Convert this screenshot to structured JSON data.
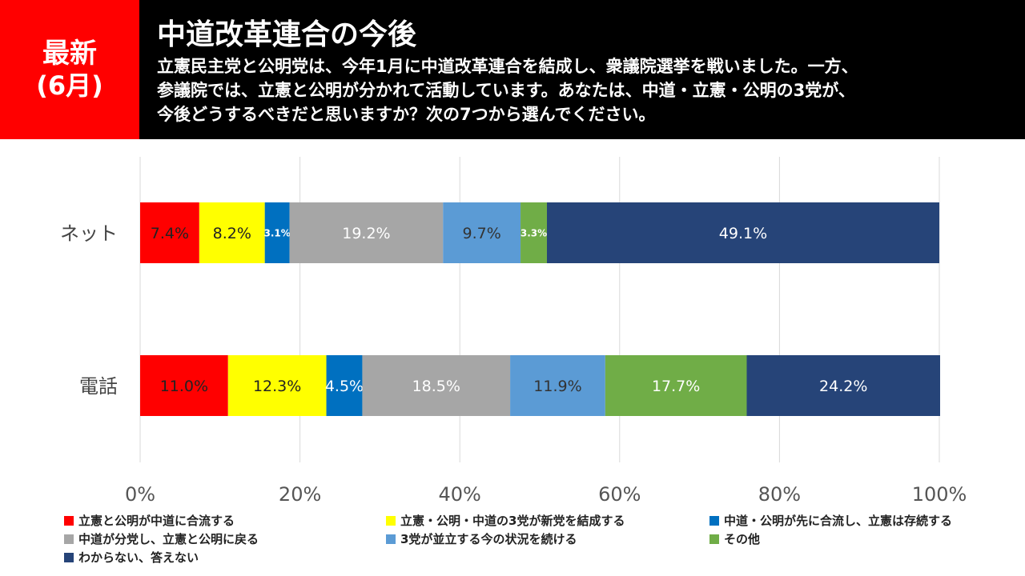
{
  "badge": {
    "line1": "最新",
    "line2": "(6月)"
  },
  "header": {
    "title": "中道改革連合の今後",
    "question_lines": [
      "立憲民主党と公明党は、今年1月に中道改革連合を結成し、衆議院選挙を戦いました。一方、",
      "参議院では、立憲と公明が分かれて活動しています。あなたは、中道・立憲・公明の3党が、",
      "今後どうするべきだと思いますか？次の7つから選んでください。"
    ]
  },
  "colors": {
    "header_bg": "#000000",
    "badge_bg": "#ff0000"
  },
  "chart_data": {
    "type": "bar",
    "orientation": "horizontal",
    "stacked": true,
    "categories": [
      "ネット",
      "電話"
    ],
    "series": [
      {
        "name": "立憲と公明が中道に合流する",
        "color": "#ff0000",
        "values": [
          7.4,
          11.0
        ],
        "labels": [
          "7.4%",
          "11.0%"
        ],
        "label_color": "#222222"
      },
      {
        "name": "立憲・公明・中道の3党が新党を結成する",
        "color": "#ffff00",
        "values": [
          8.2,
          12.3
        ],
        "labels": [
          "8.2%",
          "12.3%"
        ],
        "label_color": "#222222"
      },
      {
        "name": "中道・公明が先に合流し、立憲は存続する",
        "color": "#0070c0",
        "values": [
          3.1,
          4.5
        ],
        "labels": [
          "3.1%",
          "4.5%"
        ],
        "label_color": "#ffffff"
      },
      {
        "name": "中道が分党し、立憲と公明に戻る",
        "color": "#a6a6a6",
        "values": [
          19.2,
          18.5
        ],
        "labels": [
          "19.2%",
          "18.5%"
        ],
        "label_color": "#ffffff"
      },
      {
        "name": "3党が並立する今の状況を続ける",
        "color": "#5b9bd5",
        "values": [
          9.7,
          11.9
        ],
        "labels": [
          "9.7%",
          "11.9%"
        ],
        "label_color": "#333333"
      },
      {
        "name": "その他",
        "color": "#70ad47",
        "values": [
          3.3,
          17.7
        ],
        "labels": [
          "3.3%",
          "17.7%"
        ],
        "label_color": "#ffffff"
      },
      {
        "name": "わからない、答えない",
        "color": "#264478",
        "values": [
          49.1,
          24.2
        ],
        "labels": [
          "49.1%",
          "24.2%"
        ],
        "label_color": "#ffffff"
      }
    ],
    "xlim": [
      0,
      100
    ],
    "xticks": [
      0,
      20,
      40,
      60,
      80,
      100
    ],
    "xtick_labels": [
      "0%",
      "20%",
      "40%",
      "60%",
      "80%",
      "100%"
    ],
    "grid": true,
    "legend_position": "bottom"
  }
}
